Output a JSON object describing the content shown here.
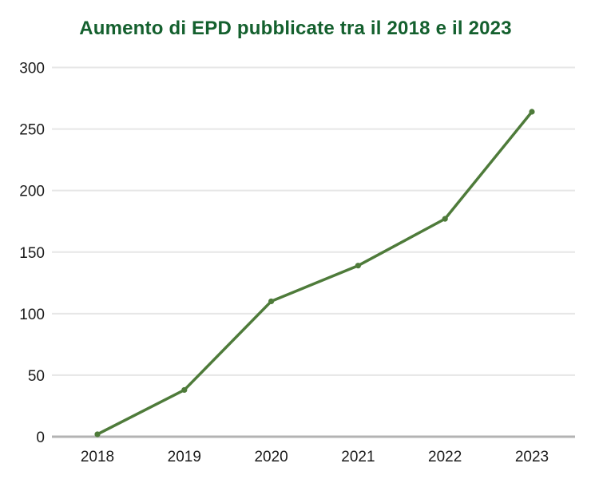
{
  "chart_data": {
    "type": "line",
    "title": "Aumento di EPD pubblicate tra il 2018 e il 2023",
    "categories": [
      "2018",
      "2019",
      "2020",
      "2021",
      "2022",
      "2023"
    ],
    "values": [
      2,
      38,
      110,
      139,
      177,
      264
    ],
    "xlabel": "",
    "ylabel": "",
    "ylim": [
      0,
      300
    ],
    "yticks": [
      0,
      50,
      100,
      150,
      200,
      250,
      300
    ],
    "grid": true,
    "legend": "none",
    "colors": {
      "background": "#ffffff",
      "title": "#14602e",
      "line": "#4e7b3a",
      "marker": "#4e7b3a",
      "gridline": "#e6e6e6",
      "zero_line": "#b3b3b3",
      "tick_label": "#1b1b1b"
    }
  }
}
